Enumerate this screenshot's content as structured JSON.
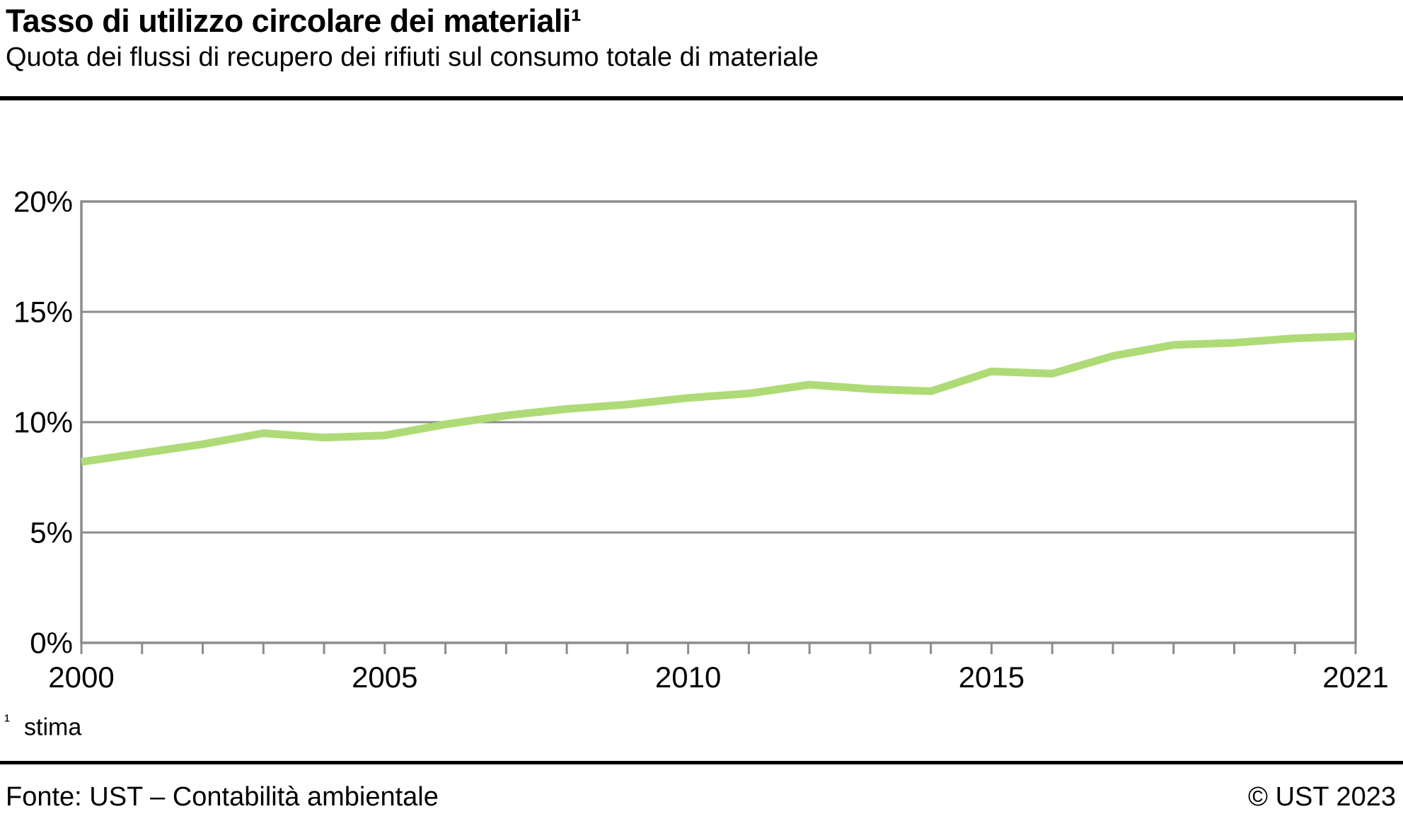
{
  "header": {
    "title": "Tasso di utilizzo circolare dei materiali¹",
    "subtitle": "Quota dei flussi di recupero dei rifiuti sul consumo totale di materiale"
  },
  "footnote": {
    "marker": "¹",
    "text": "stima"
  },
  "footer": {
    "source": "Fonte: UST – Contabilità ambientale",
    "copyright": "© UST 2023"
  },
  "colors": {
    "line": "#AEDB76",
    "axis": "#8C8C8C",
    "grid": "#8C8C8C",
    "text": "#000000",
    "rule": "#000000"
  },
  "chart_data": {
    "type": "line",
    "title": "Tasso di utilizzo circolare dei materiali (stima)",
    "xlabel": "",
    "ylabel": "",
    "ylim": [
      0,
      20
    ],
    "grid": true,
    "x": [
      2000,
      2001,
      2002,
      2003,
      2004,
      2005,
      2006,
      2007,
      2008,
      2009,
      2010,
      2011,
      2012,
      2013,
      2014,
      2015,
      2016,
      2017,
      2018,
      2019,
      2020,
      2021
    ],
    "series": [
      {
        "name": "Tasso di utilizzo circolare dei materiali",
        "values": [
          8.2,
          8.6,
          9.0,
          9.5,
          9.3,
          9.4,
          9.9,
          10.3,
          10.6,
          10.8,
          11.1,
          11.3,
          11.7,
          11.5,
          11.4,
          12.3,
          12.2,
          13.0,
          13.5,
          13.6,
          13.8,
          13.9
        ]
      }
    ],
    "y_ticks": [
      0,
      5,
      10,
      15,
      20
    ],
    "y_tick_labels": [
      "0%",
      "5%",
      "10%",
      "15%",
      "20%"
    ],
    "x_tick_labels": [
      {
        "year": 2000,
        "label": "2000"
      },
      {
        "year": 2005,
        "label": "2005"
      },
      {
        "year": 2010,
        "label": "2010"
      },
      {
        "year": 2015,
        "label": "2015"
      },
      {
        "year": 2021,
        "label": "2021"
      }
    ],
    "legend_position": "none"
  }
}
